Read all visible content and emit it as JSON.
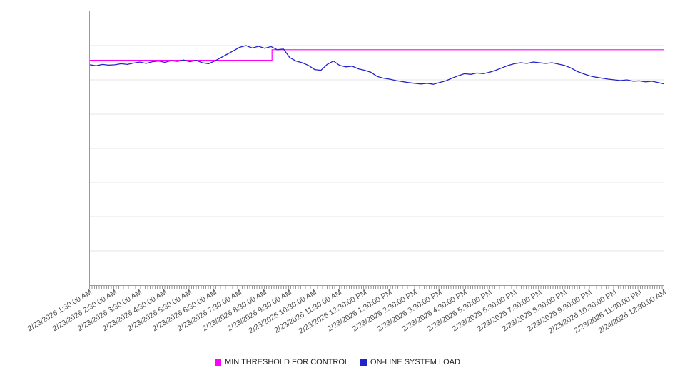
{
  "chart": {
    "legend": [
      {
        "label": "MIN THRESHOLD FOR CONTROL",
        "color": "#ff00ff"
      },
      {
        "label": "ON-LINE SYSTEM LOAD",
        "color": "#2222cc"
      }
    ]
  },
  "chart_data": {
    "type": "line",
    "title": "",
    "xlabel": "",
    "ylabel": "",
    "ylim": [
      0,
      8
    ],
    "gridline_step": 1,
    "grid": "horizontal",
    "y_tick_labels": "none",
    "legend_position": "bottom-center",
    "categories": [
      "2/23/2026 1:30:00 AM",
      "2/23/2026 2:30:00 AM",
      "2/23/2026 3:30:00 AM",
      "2/23/2026 4:30:00 AM",
      "2/23/2026 5:30:00 AM",
      "2/23/2026 6:30:00 AM",
      "2/23/2026 7:30:00 AM",
      "2/23/2026 8:30:00 AM",
      "2/23/2026 9:30:00 AM",
      "2/23/2026 10:30:00 AM",
      "2/23/2026 11:30:00 AM",
      "2/23/2026 12:30:00 PM",
      "2/23/2026 1:30:00 PM",
      "2/23/2026 2:30:00 PM",
      "2/23/2026 3:30:00 PM",
      "2/23/2026 4:30:00 PM",
      "2/23/2026 5:30:00 PM",
      "2/23/2026 6:30:00 PM",
      "2/23/2026 7:30:00 PM",
      "2/23/2026 8:30:00 PM",
      "2/23/2026 9:30:00 PM",
      "2/23/2026 10:30:00 PM",
      "2/23/2026 11:30:00 PM",
      "2/24/2026 12:30:00 AM"
    ],
    "series": [
      {
        "name": "MIN THRESHOLD FOR CONTROL",
        "color": "#ff00ff",
        "style": "step",
        "segments": [
          {
            "x0": 0,
            "x1": 0.317,
            "value": 6.57
          },
          {
            "x0": 0.317,
            "x1": 1,
            "value": 6.88
          }
        ]
      },
      {
        "name": "ON-LINE SYSTEM LOAD",
        "color": "#2222cc",
        "style": "line",
        "values": [
          6.44,
          6.41,
          6.45,
          6.43,
          6.44,
          6.47,
          6.45,
          6.49,
          6.52,
          6.48,
          6.53,
          6.55,
          6.51,
          6.56,
          6.54,
          6.58,
          6.53,
          6.57,
          6.5,
          6.47,
          6.55,
          6.65,
          6.75,
          6.85,
          6.95,
          7.0,
          6.93,
          6.98,
          6.92,
          6.97,
          6.88,
          6.9,
          6.65,
          6.55,
          6.5,
          6.42,
          6.3,
          6.28,
          6.45,
          6.55,
          6.42,
          6.38,
          6.4,
          6.32,
          6.28,
          6.22,
          6.1,
          6.05,
          6.02,
          5.98,
          5.95,
          5.92,
          5.9,
          5.88,
          5.9,
          5.87,
          5.92,
          5.97,
          6.05,
          6.12,
          6.18,
          6.16,
          6.2,
          6.18,
          6.22,
          6.28,
          6.35,
          6.42,
          6.47,
          6.5,
          6.48,
          6.52,
          6.5,
          6.48,
          6.5,
          6.46,
          6.42,
          6.35,
          6.25,
          6.18,
          6.12,
          6.08,
          6.05,
          6.02,
          6.0,
          5.98,
          6.0,
          5.96,
          5.97,
          5.94,
          5.96,
          5.92,
          5.88
        ]
      }
    ]
  }
}
